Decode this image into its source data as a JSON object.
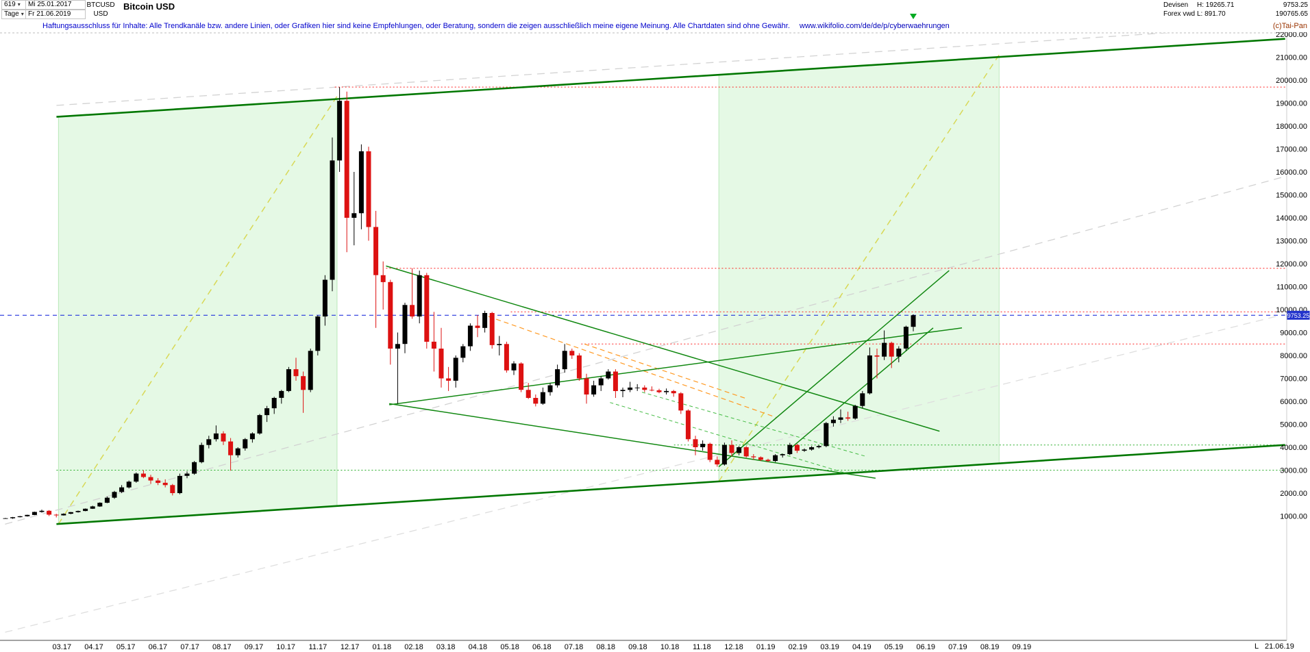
{
  "header": {
    "bars_count": "619",
    "dropdown_arrow": "▾",
    "start_date": "Mi 25.01.2017",
    "period": "Tage",
    "end_date": "Fr 21.06.2019",
    "symbol": "BTCUSD",
    "currency": "USD",
    "title": "Bitcoin USD",
    "right": {
      "category": "Devisen",
      "source": "Forex vwd",
      "high_label": "H: 19265.71",
      "low_label": "L: 891.70",
      "last_price": "9753.25",
      "volume": "190765.65",
      "copyright": "(c)Tai-Pan"
    }
  },
  "disclaimer": {
    "text": "Haftungsausschluss für Inhalte: Alle Trendkanäle bzw. andere Linien, oder Grafiken hier sind keine Empfehlungen, oder Beratung, sondern die zeigen ausschließlich meine eigene Meinung. Alle Chartdaten sind ohne Gewähr.",
    "url": "www.wikifolio.com/de/de/p/cyberwaehrungen"
  },
  "footer": {
    "last_label": "L",
    "last_date": "21.06.19"
  },
  "chart_data": {
    "type": "candlestick",
    "symbol": "BTCUSD",
    "title": "Bitcoin USD",
    "timeframe": "Tage",
    "start": "25.01.2017",
    "end": "21.06.2019",
    "current_price": 9753.25,
    "shown_high": 19265.71,
    "shown_low": 891.7,
    "unit": "USD",
    "axis": {
      "price_min": 1000,
      "price_max": 22000,
      "price_step": 1000
    },
    "x_labels": [
      "03.17",
      "04.17",
      "05.17",
      "06.17",
      "07.17",
      "08.17",
      "09.17",
      "10.17",
      "11.17",
      "12.17",
      "01.18",
      "02.18",
      "03.18",
      "04.18",
      "05.18",
      "06.18",
      "07.18",
      "08.18",
      "09.18",
      "10.18",
      "11.18",
      "12.18",
      "01.19",
      "02.19",
      "03.19",
      "04.19",
      "05.19",
      "06.19",
      "07.19",
      "08.19",
      "09.19"
    ],
    "bar_colors": {
      "up": "#000000",
      "down": "#dd1111"
    },
    "ohlc": [
      [
        895,
        920,
        880,
        905
      ],
      [
        905,
        960,
        878,
        950
      ],
      [
        950,
        1005,
        940,
        990
      ],
      [
        990,
        1060,
        975,
        1050
      ],
      [
        1050,
        1190,
        1040,
        1180
      ],
      [
        1180,
        1280,
        1150,
        1230
      ],
      [
        1230,
        1260,
        1000,
        1060
      ],
      [
        1060,
        1100,
        940,
        1030
      ],
      [
        1030,
        1120,
        1020,
        1100
      ],
      [
        1100,
        1180,
        1080,
        1170
      ],
      [
        1170,
        1240,
        1150,
        1220
      ],
      [
        1220,
        1330,
        1210,
        1320
      ],
      [
        1320,
        1450,
        1310,
        1420
      ],
      [
        1420,
        1600,
        1400,
        1580
      ],
      [
        1580,
        1850,
        1560,
        1800
      ],
      [
        1800,
        2100,
        1750,
        2050
      ],
      [
        2050,
        2350,
        2000,
        2250
      ],
      [
        2250,
        2550,
        2200,
        2500
      ],
      [
        2500,
        2900,
        2450,
        2850
      ],
      [
        2850,
        3000,
        2650,
        2700
      ],
      [
        2700,
        2800,
        2400,
        2550
      ],
      [
        2550,
        2650,
        2350,
        2450
      ],
      [
        2450,
        2600,
        2250,
        2350
      ],
      [
        2350,
        2400,
        1900,
        2000
      ],
      [
        2000,
        2850,
        1950,
        2750
      ],
      [
        2750,
        2950,
        2650,
        2850
      ],
      [
        2850,
        3400,
        2800,
        3350
      ],
      [
        3350,
        4200,
        3300,
        4100
      ],
      [
        4100,
        4500,
        3950,
        4350
      ],
      [
        4350,
        4950,
        4250,
        4600
      ],
      [
        4600,
        4700,
        4100,
        4250
      ],
      [
        4250,
        4400,
        2980,
        3650
      ],
      [
        3650,
        4000,
        3550,
        3950
      ],
      [
        3950,
        4400,
        3850,
        4350
      ],
      [
        4350,
        4650,
        4200,
        4600
      ],
      [
        4600,
        5450,
        4550,
        5400
      ],
      [
        5400,
        5800,
        5100,
        5700
      ],
      [
        5700,
        6200,
        5450,
        6150
      ],
      [
        6150,
        6500,
        5900,
        6450
      ],
      [
        6450,
        7500,
        6400,
        7400
      ],
      [
        7400,
        7900,
        6900,
        7100
      ],
      [
        7100,
        7300,
        5500,
        6500
      ],
      [
        6500,
        8300,
        6400,
        8200
      ],
      [
        8200,
        9750,
        8000,
        9700
      ],
      [
        9700,
        11500,
        9300,
        11300
      ],
      [
        11300,
        17500,
        10800,
        16500
      ],
      [
        16500,
        19700,
        16000,
        19100
      ],
      [
        19100,
        19500,
        12500,
        14000
      ],
      [
        14000,
        16000,
        12800,
        14200
      ],
      [
        14200,
        17200,
        13500,
        16900
      ],
      [
        16900,
        17100,
        13000,
        13600
      ],
      [
        13600,
        14300,
        9200,
        11500
      ],
      [
        11500,
        12100,
        10000,
        11200
      ],
      [
        11200,
        11300,
        7600,
        8300
      ],
      [
        8300,
        9000,
        5900,
        8500
      ],
      [
        8500,
        10300,
        8100,
        10200
      ],
      [
        10200,
        11800,
        9600,
        9700
      ],
      [
        9700,
        11700,
        9400,
        11500
      ],
      [
        11500,
        11600,
        8300,
        8600
      ],
      [
        8600,
        9900,
        7300,
        8300
      ],
      [
        8300,
        9200,
        6600,
        7000
      ],
      [
        7000,
        7500,
        6450,
        6900
      ],
      [
        6900,
        8000,
        6600,
        7900
      ],
      [
        7900,
        8500,
        7700,
        8400
      ],
      [
        8400,
        9400,
        8200,
        9300
      ],
      [
        9300,
        9760,
        8800,
        9200
      ],
      [
        9200,
        9950,
        9000,
        9850
      ],
      [
        9850,
        9900,
        8300,
        8450
      ],
      [
        8450,
        8850,
        8000,
        8500
      ],
      [
        8500,
        8600,
        7250,
        7350
      ],
      [
        7350,
        7750,
        7150,
        7650
      ],
      [
        7650,
        7700,
        6400,
        6500
      ],
      [
        6500,
        6800,
        6100,
        6150
      ],
      [
        6150,
        6300,
        5780,
        5900
      ],
      [
        5900,
        6600,
        5850,
        6400
      ],
      [
        6400,
        6800,
        6250,
        6700
      ],
      [
        6700,
        7600,
        6600,
        7400
      ],
      [
        7400,
        8500,
        7250,
        8200
      ],
      [
        8200,
        8300,
        7850,
        8000
      ],
      [
        8000,
        8100,
        6900,
        7000
      ],
      [
        7000,
        7200,
        5900,
        6300
      ],
      [
        6300,
        6900,
        6200,
        6700
      ],
      [
        6700,
        7100,
        6450,
        7000
      ],
      [
        7000,
        7400,
        6950,
        7300
      ],
      [
        7300,
        7400,
        6150,
        6450
      ],
      [
        6450,
        6600,
        6180,
        6500
      ],
      [
        6500,
        6850,
        6400,
        6600
      ],
      [
        6600,
        6750,
        6450,
        6600
      ],
      [
        6600,
        6700,
        6400,
        6500
      ],
      [
        6500,
        6650,
        6440,
        6480
      ],
      [
        6480,
        6550,
        6350,
        6400
      ],
      [
        6400,
        6560,
        6300,
        6450
      ],
      [
        6450,
        6500,
        6200,
        6350
      ],
      [
        6350,
        6400,
        5450,
        5600
      ],
      [
        5600,
        5650,
        4250,
        4350
      ],
      [
        4350,
        4500,
        3650,
        4000
      ],
      [
        4000,
        4300,
        3850,
        4150
      ],
      [
        4150,
        4200,
        3350,
        3450
      ],
      [
        3450,
        3600,
        3150,
        3250
      ],
      [
        3250,
        4200,
        3200,
        4100
      ],
      [
        4100,
        4300,
        3600,
        3750
      ],
      [
        3750,
        4050,
        3650,
        4000
      ],
      [
        4000,
        4050,
        3550,
        3600
      ],
      [
        3600,
        3700,
        3450,
        3560
      ],
      [
        3560,
        3600,
        3400,
        3450
      ],
      [
        3450,
        3500,
        3350,
        3400
      ],
      [
        3400,
        3700,
        3350,
        3650
      ],
      [
        3650,
        3720,
        3550,
        3700
      ],
      [
        3700,
        4190,
        3650,
        4100
      ],
      [
        4100,
        4150,
        3750,
        3850
      ],
      [
        3850,
        3950,
        3800,
        3900
      ],
      [
        3900,
        4050,
        3850,
        4000
      ],
      [
        4000,
        4100,
        3950,
        4050
      ],
      [
        4050,
        5100,
        4000,
        5050
      ],
      [
        5050,
        5350,
        4900,
        5200
      ],
      [
        5200,
        5650,
        5050,
        5300
      ],
      [
        5300,
        5550,
        5150,
        5250
      ],
      [
        5250,
        5850,
        5200,
        5800
      ],
      [
        5800,
        6450,
        5700,
        6350
      ],
      [
        6350,
        8350,
        6300,
        8000
      ],
      [
        8000,
        8300,
        7000,
        7950
      ],
      [
        7950,
        9090,
        7800,
        8550
      ],
      [
        8550,
        8600,
        7450,
        7950
      ],
      [
        7950,
        8400,
        7700,
        8300
      ],
      [
        8300,
        9300,
        8200,
        9250
      ],
      [
        9250,
        9790,
        9050,
        9753.25
      ]
    ],
    "overlays": {
      "bands": [
        {
          "name": "projection-band-2017",
          "m1": 2.06,
          "p_top1": 18400,
          "p_bot1": 650,
          "m2": 10.77,
          "p_top2": 19180,
          "p_bot2": 1440,
          "fill": "rgba(170,235,170,0.30)",
          "stroke": "rgba(120,210,120,0.75)"
        },
        {
          "name": "projection-band-2019",
          "m1": 22.7,
          "p_top1": 20230,
          "p_bot1": 2510,
          "m2": 31.46,
          "p_top2": 21010,
          "p_bot2": 3300,
          "fill": "rgba(170,235,170,0.30)",
          "stroke": "rgba(120,210,120,0.75)"
        }
      ],
      "lines": [
        {
          "name": "gray-trend-1",
          "m1": 0,
          "p1": 500,
          "m2": 40.4,
          "p2": 15800,
          "color": "#d2d2d2",
          "w": 1.3,
          "dash": "11 8"
        },
        {
          "name": "gray-trend-2",
          "m1": 2,
          "p1": 18900,
          "m2": 40.4,
          "p2": 22400,
          "color": "#d2d2d2",
          "w": 1.3,
          "dash": "11 8"
        },
        {
          "name": "gray-trend-3",
          "m1": 0,
          "p1": -4200,
          "m2": 40.4,
          "p2": 9800,
          "color": "#dedede",
          "w": 1.3,
          "dash": "11 8"
        },
        {
          "name": "projection-diagonal-1",
          "m1": 2.06,
          "p1": 650,
          "m2": 10.77,
          "p2": 19300,
          "color": "#d8d855",
          "w": 1.5,
          "dash": "9 7"
        },
        {
          "name": "projection-diagonal-2",
          "m1": 22.7,
          "p1": 2510,
          "m2": 31.46,
          "p2": 21100,
          "color": "#d8d855",
          "w": 1.5,
          "dash": "9 7"
        },
        {
          "name": "resistance-19700",
          "m1": 10.7,
          "p1": 19700,
          "m2": 40.4,
          "p2": 19700,
          "color": "#ff2222",
          "w": 1,
          "dash": "2 3"
        },
        {
          "name": "resistance-11800",
          "m1": 12.3,
          "p1": 11800,
          "m2": 40.4,
          "p2": 11800,
          "color": "#ff2222",
          "w": 1,
          "dash": "2 3"
        },
        {
          "name": "resistance-9900",
          "m1": 16.2,
          "p1": 9900,
          "m2": 40.4,
          "p2": 9900,
          "color": "#ff2222",
          "w": 1,
          "dash": "2 3"
        },
        {
          "name": "resistance-8500",
          "m1": 18.4,
          "p1": 8500,
          "m2": 40.4,
          "p2": 8500,
          "color": "#ff2222",
          "w": 1,
          "dash": "2 3"
        },
        {
          "name": "support-3000",
          "m1": 2,
          "p1": 3000,
          "m2": 40.4,
          "p2": 3000,
          "color": "#22aa22",
          "w": 1,
          "dash": "2 3"
        },
        {
          "name": "support-4100",
          "m1": 21.3,
          "p1": 4100,
          "m2": 40.4,
          "p2": 4100,
          "color": "#22aa22",
          "w": 1,
          "dash": "2 3"
        },
        {
          "name": "orange-downtrend-1",
          "m1": 15.5,
          "p1": 9700,
          "m2": 24.5,
          "p2": 5300,
          "color": "#ff9922",
          "w": 1.2,
          "dash": "7 5"
        },
        {
          "name": "orange-downtrend-2",
          "m1": 18.5,
          "p1": 8500,
          "m2": 23.6,
          "p2": 6100,
          "color": "#ff9922",
          "w": 1.2,
          "dash": "7 5"
        },
        {
          "name": "current-price-line",
          "m1": 0,
          "p1": 9753.25,
          "m2": 40.4,
          "p2": 9753.25,
          "color": "#2233dd",
          "w": 1.2,
          "dash": "6 5"
        },
        {
          "name": "wedge-lower",
          "m1": 19.3,
          "p1": 5950,
          "m2": 26.6,
          "p2": 2900,
          "color": "#44bb44",
          "w": 1,
          "dash": "5 4"
        },
        {
          "name": "wedge-upper",
          "m1": 20.3,
          "p1": 6400,
          "m2": 27.3,
          "p2": 3600,
          "color": "#44bb44",
          "w": 1,
          "dash": "5 4"
        },
        {
          "name": "downtrend-from-feb18-high",
          "m1": 12.3,
          "p1": 11900,
          "m2": 29.6,
          "p2": 4700,
          "color": "#118811",
          "w": 1.5,
          "dash": ""
        },
        {
          "name": "downtrend-support",
          "m1": 12.4,
          "p1": 5900,
          "m2": 27.6,
          "p2": 2650,
          "color": "#118811",
          "w": 1.5,
          "dash": ""
        },
        {
          "name": "long-rising-support",
          "m1": 12.4,
          "p1": 5850,
          "m2": 30.3,
          "p2": 9200,
          "color": "#118811",
          "w": 1.5,
          "dash": ""
        },
        {
          "name": "steep-2019-trend-1",
          "m1": 22.7,
          "p1": 3150,
          "m2": 29.9,
          "p2": 11700,
          "color": "#118811",
          "w": 1.5,
          "dash": ""
        },
        {
          "name": "steep-2019-trend-2",
          "m1": 24.9,
          "p1": 3900,
          "m2": 29.4,
          "p2": 9200,
          "color": "#118811",
          "w": 1.5,
          "dash": ""
        },
        {
          "name": "channel-lower",
          "m1": 2,
          "p1": 650,
          "m2": 40.4,
          "p2": 4100,
          "color": "#007700",
          "w": 2.6,
          "dash": ""
        },
        {
          "name": "channel-upper",
          "m1": 2,
          "p1": 18400,
          "m2": 40.4,
          "p2": 21800,
          "color": "#007700",
          "w": 2.6,
          "dash": ""
        }
      ]
    }
  }
}
